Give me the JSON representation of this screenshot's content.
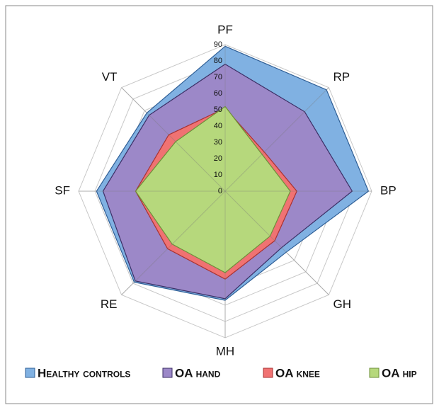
{
  "chart_data": {
    "type": "radar",
    "categories": [
      "PF",
      "RP",
      "BP",
      "GH",
      "MH",
      "RE",
      "SF",
      "VT"
    ],
    "rlim": [
      0,
      90
    ],
    "rticks": [
      0,
      10,
      20,
      30,
      40,
      50,
      60,
      70,
      80,
      90
    ],
    "grid": true,
    "legend": "bottom",
    "series": [
      {
        "name": "Healthy controls",
        "color": "#80b1e2",
        "stroke": "#2f5f96",
        "values": [
          89,
          88,
          88,
          53,
          67,
          79,
          79,
          68
        ]
      },
      {
        "name": "OA hand",
        "color": "#9c88c8",
        "stroke": "#3c2f66",
        "values": [
          78,
          69,
          78,
          49,
          66,
          78,
          75,
          66
        ]
      },
      {
        "name": "OA knee",
        "color": "#f07272",
        "stroke": "#a83232",
        "values": [
          51,
          34,
          44,
          43,
          54,
          50,
          55,
          49
        ]
      },
      {
        "name": "OA hip",
        "color": "#b6d87c",
        "stroke": "#6e8f3a",
        "values": [
          52,
          32,
          40,
          39,
          50,
          46,
          55,
          43
        ]
      }
    ]
  }
}
